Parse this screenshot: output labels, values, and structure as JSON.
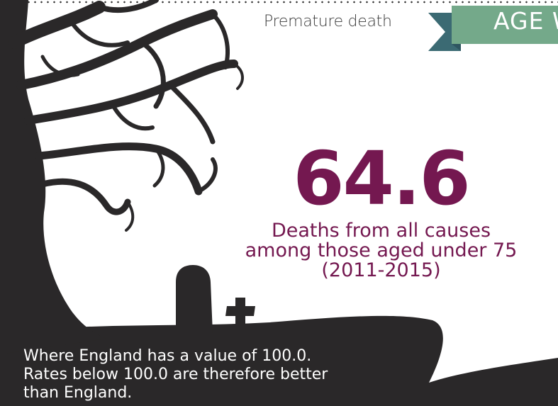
{
  "header": {
    "section_label": "Premature death",
    "ribbon_label": "AGE W"
  },
  "stat": {
    "value": "64.6",
    "description_line1": "Deaths from all causes",
    "description_line2": "among those aged under 75",
    "description_line3": "(2011-2015)"
  },
  "footnote": {
    "line1": "Where England has a value of 100.0.",
    "line2": "Rates below 100.0 are therefore better",
    "line3": "than England."
  },
  "colors": {
    "accent": "#741850",
    "ribbon": "#74a98a",
    "ribbon_shadow": "#3b6a73",
    "silhouette": "#2a2829"
  },
  "icons": {
    "tree": "tree-silhouette-icon",
    "gravestone": "gravestone-icon",
    "cross": "cross-icon"
  }
}
